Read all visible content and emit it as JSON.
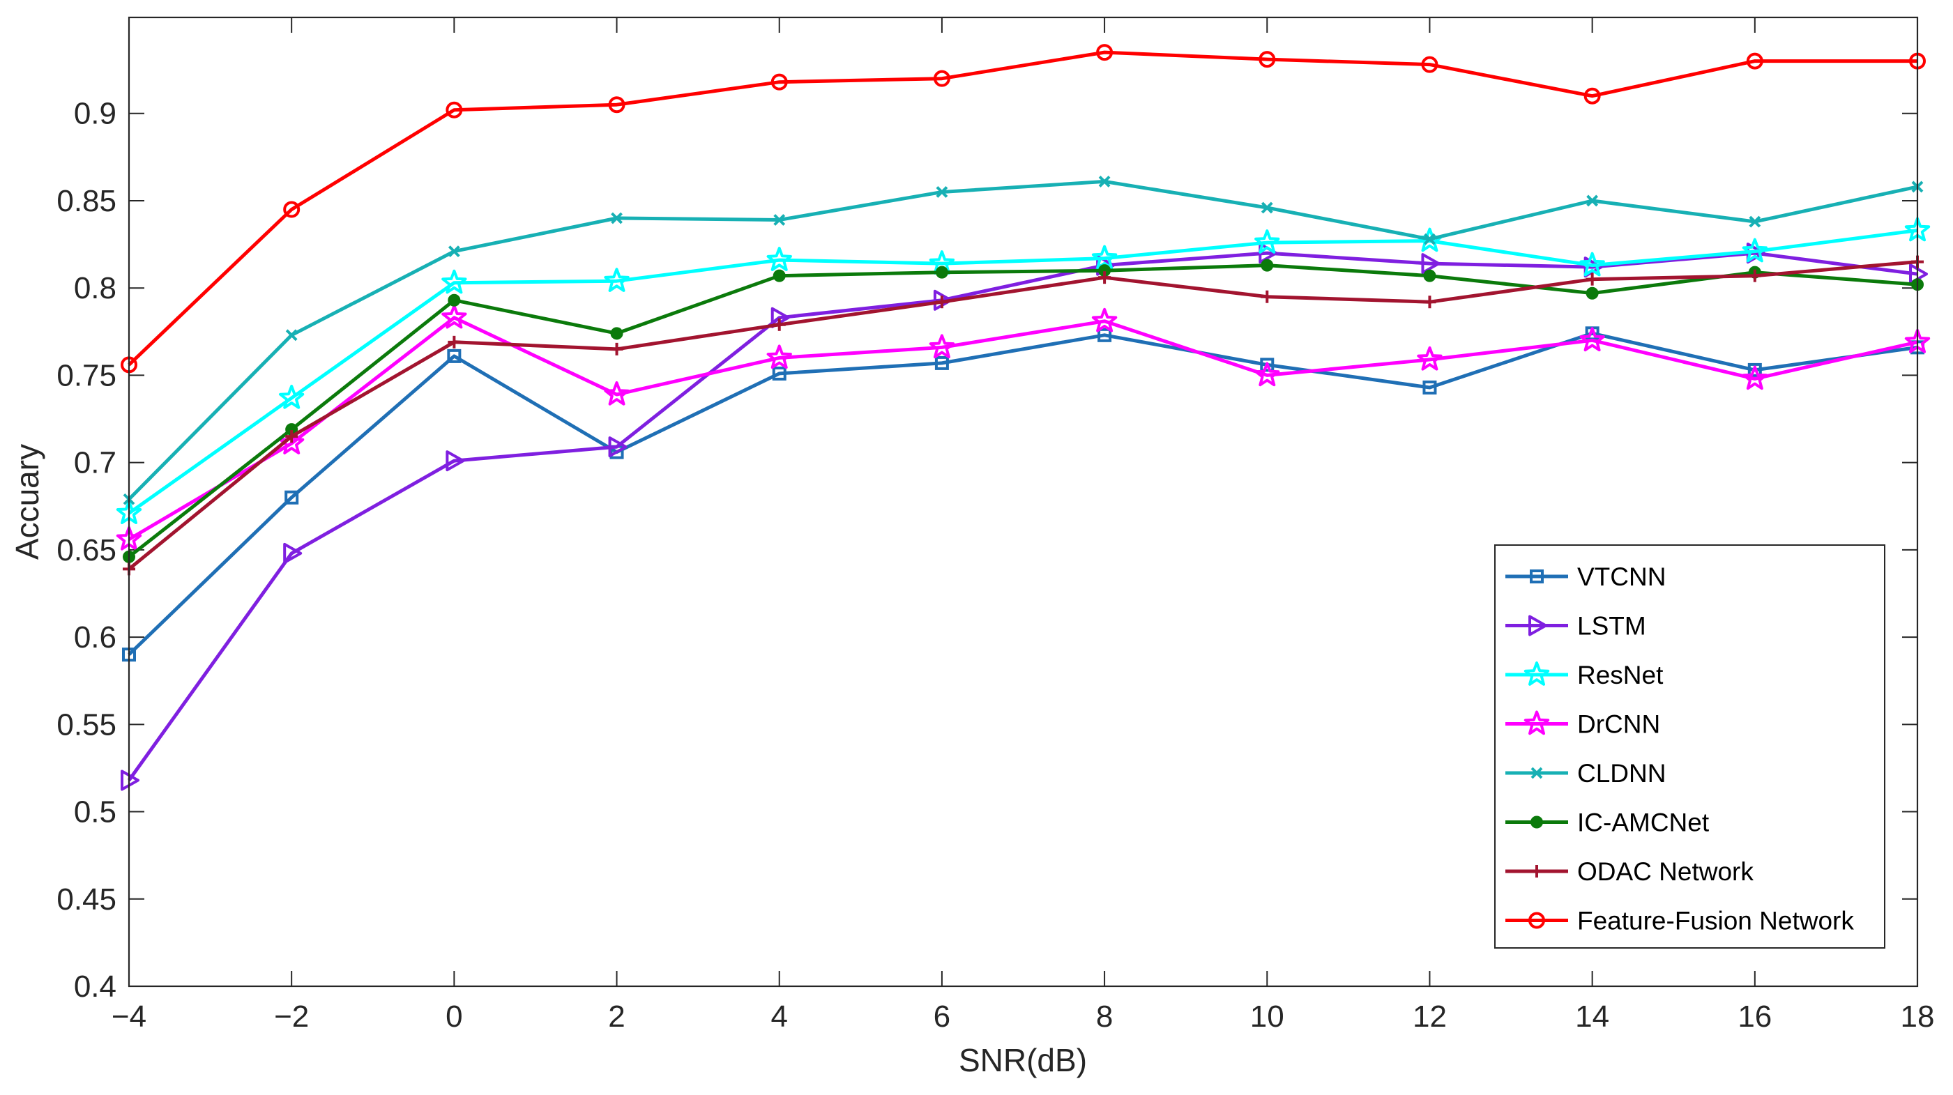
{
  "chart_data": {
    "type": "line",
    "xlabel": "SNR(dB)",
    "ylabel": "Accuary",
    "x": [
      -4,
      -2,
      0,
      2,
      4,
      6,
      8,
      10,
      12,
      14,
      16,
      18
    ],
    "xlim": [
      -4,
      18
    ],
    "ylim": [
      0.4,
      0.955
    ],
    "x_ticks": [
      "−4",
      "−2",
      "0",
      "2",
      "4",
      "6",
      "8",
      "10",
      "12",
      "14",
      "16",
      "18"
    ],
    "y_ticks": [
      "0.4",
      "0.45",
      "0.5",
      "0.55",
      "0.6",
      "0.65",
      "0.7",
      "0.75",
      "0.8",
      "0.85",
      "0.9"
    ],
    "grid": false,
    "legend_position": "bottom-right",
    "series": [
      {
        "name": "VTCNN",
        "color": "#1f6fb5",
        "marker": "square",
        "values": [
          0.59,
          0.68,
          0.761,
          0.706,
          0.751,
          0.757,
          0.773,
          0.756,
          0.743,
          0.774,
          0.753,
          0.766
        ]
      },
      {
        "name": "LSTM",
        "color": "#7f1fe0",
        "marker": "triangle-right",
        "values": [
          0.518,
          0.648,
          0.701,
          0.709,
          0.783,
          0.793,
          0.813,
          0.82,
          0.814,
          0.812,
          0.82,
          0.808
        ]
      },
      {
        "name": "ResNet",
        "color": "#00ffff",
        "marker": "star",
        "values": [
          0.671,
          0.737,
          0.803,
          0.804,
          0.816,
          0.814,
          0.817,
          0.826,
          0.827,
          0.813,
          0.821,
          0.833
        ]
      },
      {
        "name": "DrCNN",
        "color": "#ff00ff",
        "marker": "star",
        "values": [
          0.656,
          0.711,
          0.783,
          0.739,
          0.76,
          0.766,
          0.781,
          0.75,
          0.759,
          0.77,
          0.748,
          0.769
        ]
      },
      {
        "name": "CLDNN",
        "color": "#17b0b4",
        "marker": "x",
        "values": [
          0.679,
          0.773,
          0.821,
          0.84,
          0.839,
          0.855,
          0.861,
          0.846,
          0.828,
          0.85,
          0.838,
          0.858
        ]
      },
      {
        "name": "IC-AMCNet",
        "color": "#0b7a0b",
        "marker": "dot",
        "values": [
          0.646,
          0.719,
          0.793,
          0.774,
          0.807,
          0.809,
          0.81,
          0.813,
          0.807,
          0.797,
          0.809,
          0.802
        ]
      },
      {
        "name": "ODAC Network",
        "color": "#a2142f",
        "marker": "plus",
        "values": [
          0.639,
          0.715,
          0.769,
          0.765,
          0.779,
          0.792,
          0.806,
          0.795,
          0.792,
          0.805,
          0.807,
          0.815
        ]
      },
      {
        "name": "Feature-Fusion Network",
        "color": "#ff0000",
        "marker": "circle",
        "values": [
          0.756,
          0.845,
          0.902,
          0.905,
          0.918,
          0.92,
          0.935,
          0.931,
          0.928,
          0.91,
          0.93,
          0.93
        ]
      }
    ]
  }
}
